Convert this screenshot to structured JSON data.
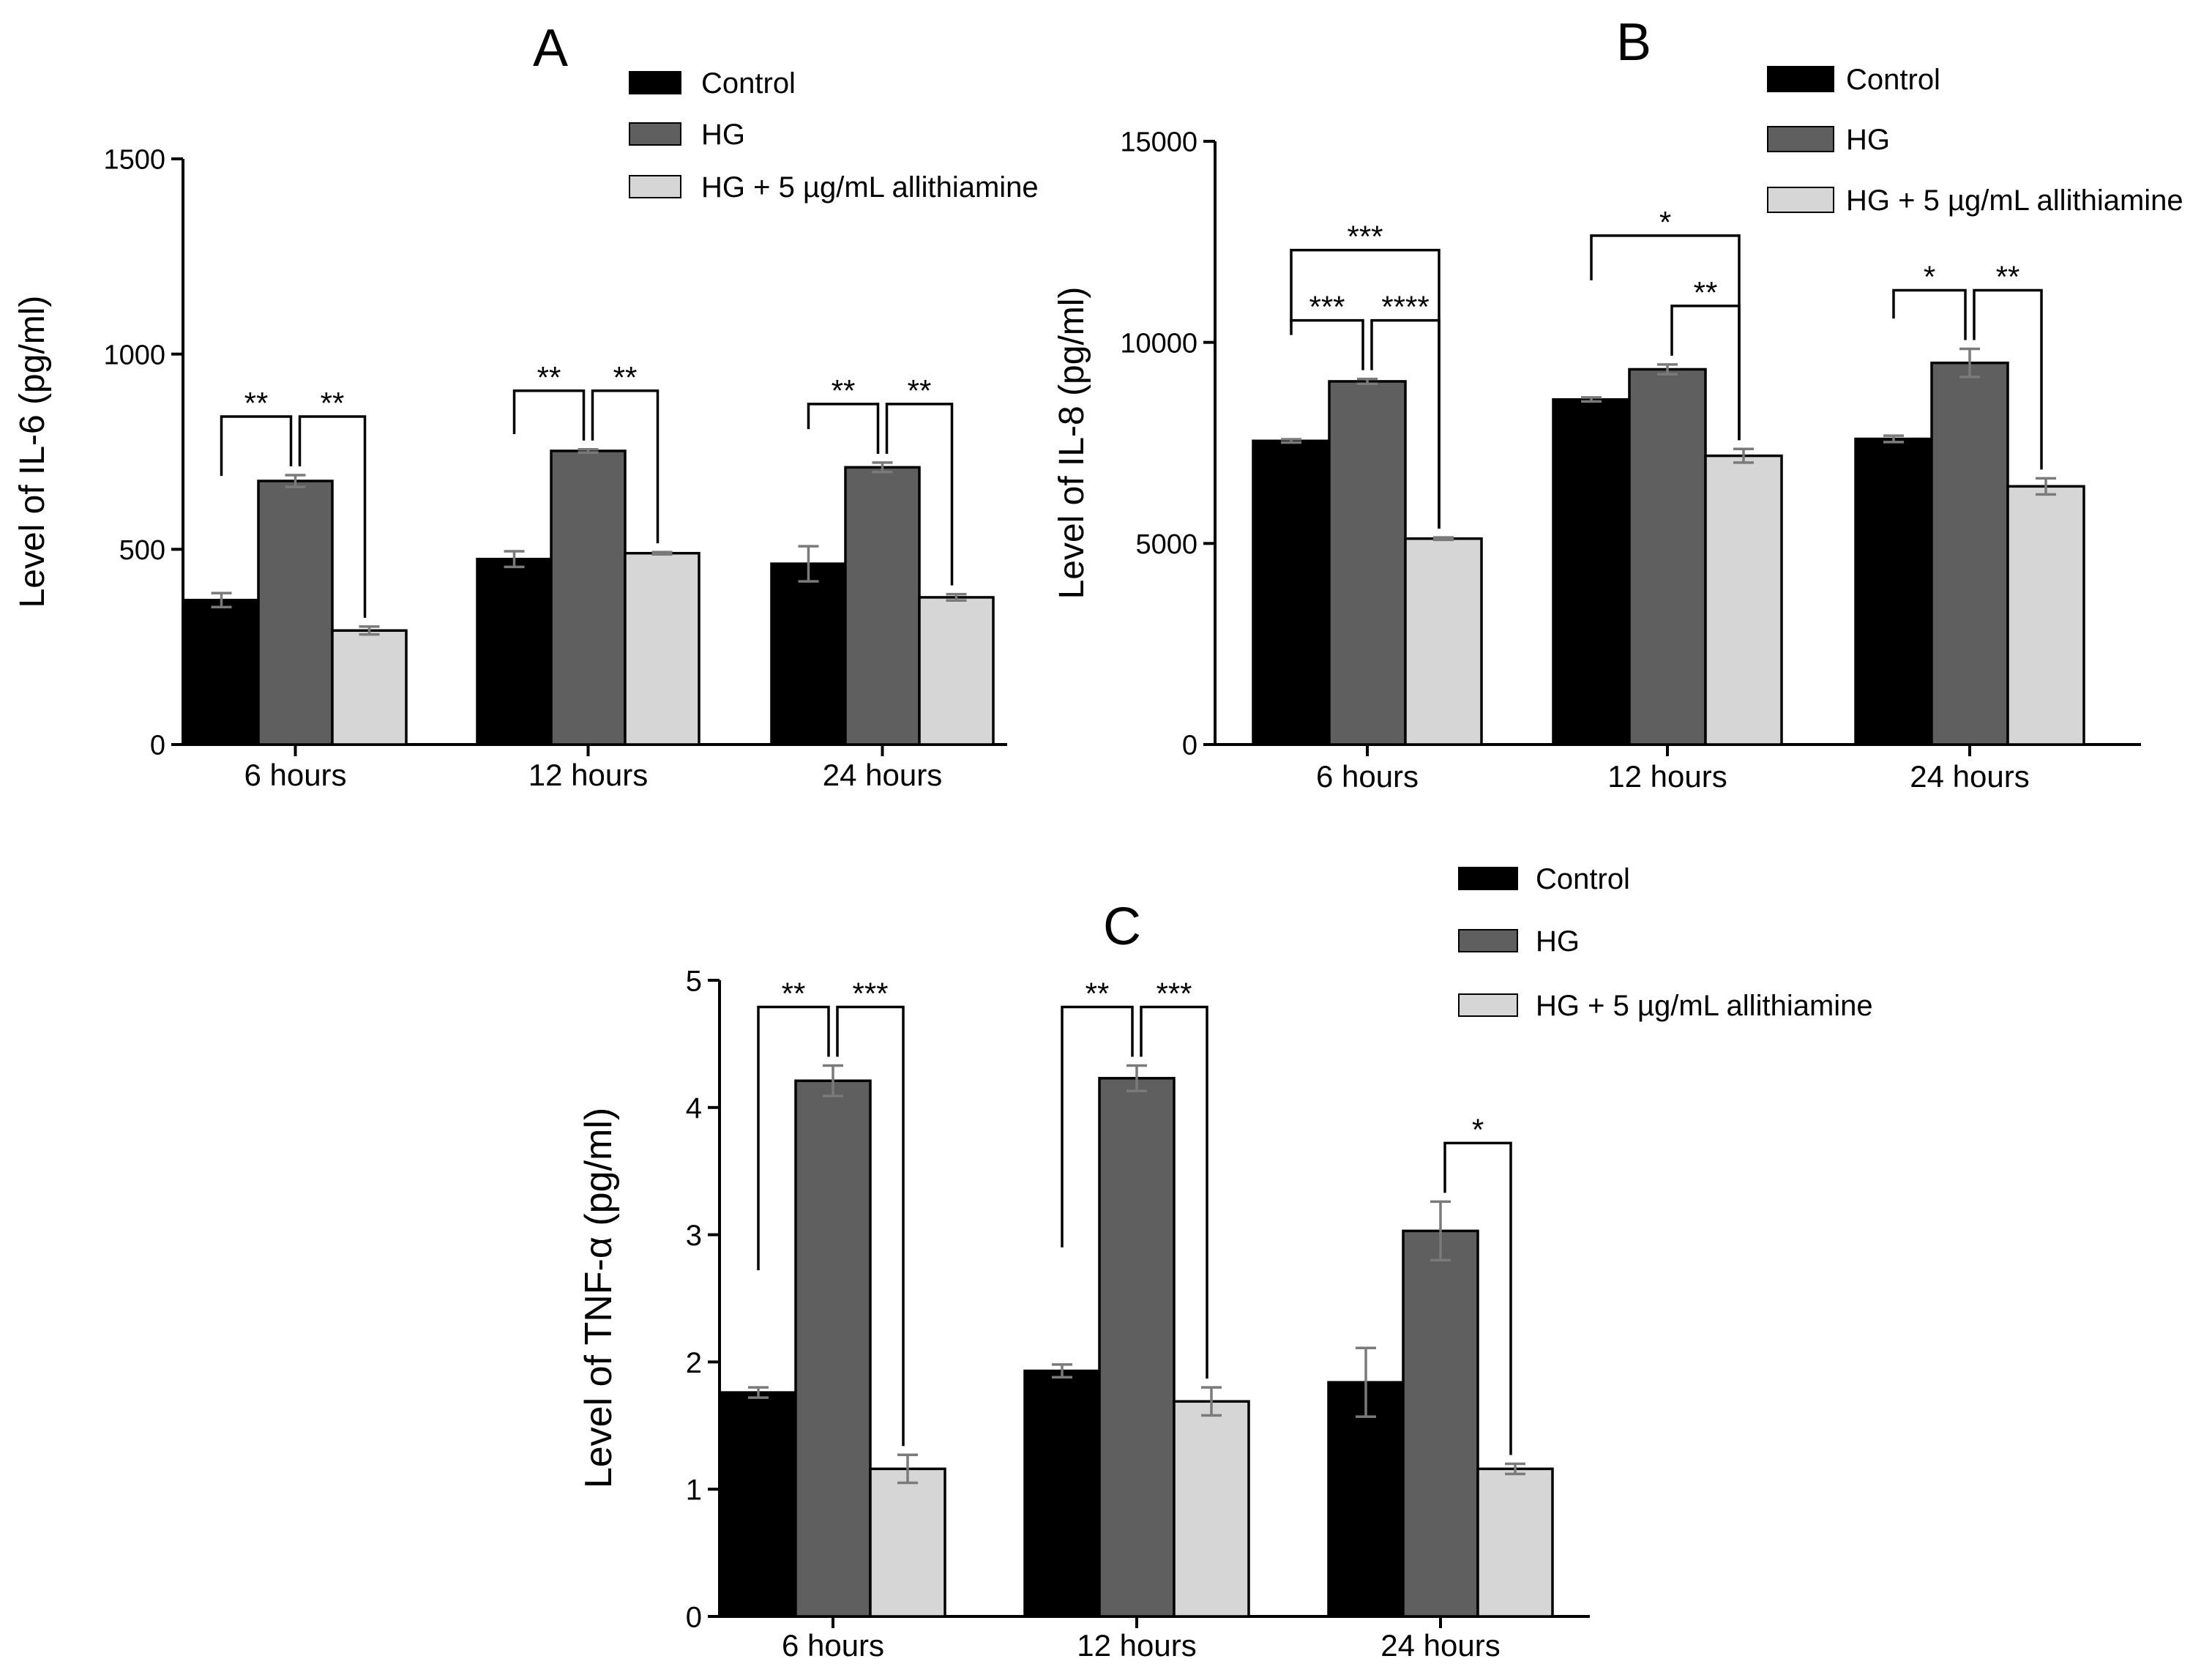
{
  "chart_data": [
    {
      "type": "bar",
      "panel_label": "A",
      "categories": [
        "6 hours",
        "12 hours",
        "24 hours"
      ],
      "ylabel": "Level of IL-6 (pg/ml)",
      "xlabel": "",
      "ylim": [
        0,
        1500
      ],
      "yticks": [
        0,
        500,
        1000,
        1500
      ],
      "ytick_labels": [
        "0",
        "500",
        "1000",
        "1500"
      ],
      "legend_position": "top-right",
      "series": [
        {
          "name": "Control",
          "color": "#000000",
          "values": [
            370,
            475,
            463
          ],
          "errors": [
            18,
            20,
            45
          ]
        },
        {
          "name": "HG",
          "color": "#5f5f5f",
          "values": [
            675,
            752,
            710
          ],
          "errors": [
            15,
            4,
            12
          ]
        },
        {
          "name": "HG + 5 µg/mL allithiamine",
          "color": "#d6d6d6",
          "values": [
            292,
            490,
            377
          ],
          "errors": [
            10,
            3,
            8
          ]
        }
      ],
      "annotations": [
        {
          "text": "**",
          "group": 0,
          "from": 0,
          "to": 1
        },
        {
          "text": "**",
          "group": 0,
          "from": 1,
          "to": 2
        },
        {
          "text": "**",
          "group": 1,
          "from": 0,
          "to": 1
        },
        {
          "text": "**",
          "group": 1,
          "from": 1,
          "to": 2
        },
        {
          "text": "**",
          "group": 2,
          "from": 0,
          "to": 1
        },
        {
          "text": "**",
          "group": 2,
          "from": 1,
          "to": 2
        }
      ]
    },
    {
      "type": "bar",
      "panel_label": "B",
      "categories": [
        "6 hours",
        "12 hours",
        "24 hours"
      ],
      "ylabel": "Level of IL-8 (pg/ml)",
      "xlabel": "",
      "ylim": [
        0,
        15000
      ],
      "yticks": [
        0,
        5000,
        10000,
        15000
      ],
      "ytick_labels": [
        "0",
        "5000",
        "10000",
        "15000"
      ],
      "legend_position": "top-right",
      "series": [
        {
          "name": "Control",
          "color": "#000000",
          "values": [
            7550,
            8580,
            7600
          ],
          "errors": [
            40,
            50,
            80
          ]
        },
        {
          "name": "HG",
          "color": "#5f5f5f",
          "values": [
            9030,
            9330,
            9490
          ],
          "errors": [
            60,
            120,
            350
          ]
        },
        {
          "name": "HG + 5 µg/mL allithiamine",
          "color": "#d6d6d6",
          "values": [
            5120,
            7180,
            6420
          ],
          "errors": [
            30,
            170,
            200
          ]
        }
      ],
      "annotations": [
        {
          "text": "***",
          "group": 0,
          "from": 0,
          "to": 1
        },
        {
          "text": "****",
          "group": 0,
          "from": 1,
          "to": 2
        },
        {
          "text": "***",
          "group": 0,
          "from": 0,
          "to": 2
        },
        {
          "text": "**",
          "group": 1,
          "from": 1,
          "to": 2
        },
        {
          "text": "*",
          "group": 1,
          "from": 0,
          "to": 2
        },
        {
          "text": "*",
          "group": 2,
          "from": 0,
          "to": 1
        },
        {
          "text": "**",
          "group": 2,
          "from": 1,
          "to": 2
        }
      ]
    },
    {
      "type": "bar",
      "panel_label": "C",
      "categories": [
        "6 hours",
        "12 hours",
        "24 hours"
      ],
      "ylabel": "Level of TNF-α (pg/ml)",
      "xlabel": "",
      "ylim": [
        0,
        5
      ],
      "yticks": [
        0,
        1,
        2,
        3,
        4,
        5
      ],
      "ytick_labels": [
        "0",
        "1",
        "2",
        "3",
        "4",
        "5"
      ],
      "legend_position": "top-right",
      "series": [
        {
          "name": "Control",
          "color": "#000000",
          "values": [
            1.76,
            1.93,
            1.84
          ],
          "errors": [
            0.04,
            0.05,
            0.27
          ]
        },
        {
          "name": "HG",
          "color": "#5f5f5f",
          "values": [
            4.21,
            4.23,
            3.03
          ],
          "errors": [
            0.12,
            0.1,
            0.23
          ]
        },
        {
          "name": "HG + 5 µg/mL allithiamine",
          "color": "#d6d6d6",
          "values": [
            1.16,
            1.69,
            1.16
          ],
          "errors": [
            0.11,
            0.11,
            0.04
          ]
        }
      ],
      "annotations": [
        {
          "text": "**",
          "group": 0,
          "from": 0,
          "to": 1
        },
        {
          "text": "***",
          "group": 0,
          "from": 1,
          "to": 2
        },
        {
          "text": "**",
          "group": 1,
          "from": 0,
          "to": 1
        },
        {
          "text": "***",
          "group": 1,
          "from": 1,
          "to": 2
        },
        {
          "text": "*",
          "group": 2,
          "from": 1,
          "to": 2
        }
      ]
    }
  ]
}
